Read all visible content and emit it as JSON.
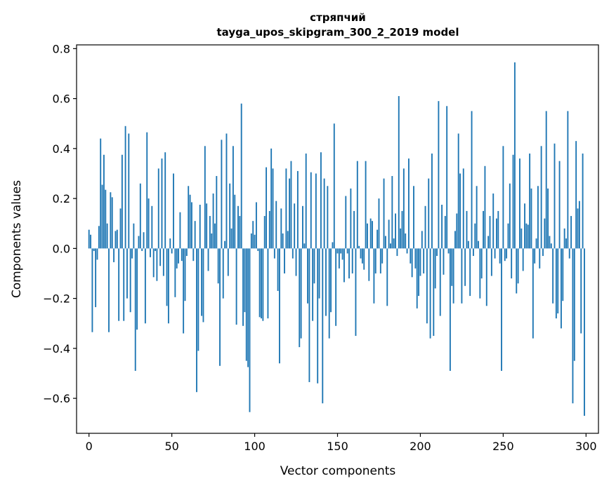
{
  "chart_data": {
    "type": "bar",
    "title": "стряпчий",
    "subtitle": "tayga_upos_skipgram_300_2_2019 model",
    "xlabel": "Vector components",
    "ylabel": "Components values",
    "xlim": [
      -7.5,
      307.5
    ],
    "ylim": [
      -0.74,
      0.815
    ],
    "xticks": [
      0,
      50,
      100,
      150,
      200,
      250,
      300
    ],
    "xtick_labels": [
      "0",
      "50",
      "100",
      "150",
      "200",
      "250",
      "300"
    ],
    "yticks": [
      -0.6,
      -0.4,
      -0.2,
      0.0,
      0.2,
      0.4,
      0.6,
      0.8
    ],
    "ytick_labels": [
      "−0.6",
      "−0.4",
      "−0.2",
      "0.0",
      "0.2",
      "0.4",
      "0.6",
      "0.8"
    ],
    "bar_color": "#1f77b4",
    "grid": false,
    "x": [
      0,
      1,
      2,
      3,
      4,
      5,
      6,
      7,
      8,
      9,
      10,
      11,
      12,
      13,
      14,
      15,
      16,
      17,
      18,
      19,
      20,
      21,
      22,
      23,
      24,
      25,
      26,
      27,
      28,
      29,
      30,
      31,
      32,
      33,
      34,
      35,
      36,
      37,
      38,
      39,
      40,
      41,
      42,
      43,
      44,
      45,
      46,
      47,
      48,
      49,
      50,
      51,
      52,
      53,
      54,
      55,
      56,
      57,
      58,
      59,
      60,
      61,
      62,
      63,
      64,
      65,
      66,
      67,
      68,
      69,
      70,
      71,
      72,
      73,
      74,
      75,
      76,
      77,
      78,
      79,
      80,
      81,
      82,
      83,
      84,
      85,
      86,
      87,
      88,
      89,
      90,
      91,
      92,
      93,
      94,
      95,
      96,
      97,
      98,
      99,
      100,
      101,
      102,
      103,
      104,
      105,
      106,
      107,
      108,
      109,
      110,
      111,
      112,
      113,
      114,
      115,
      116,
      117,
      118,
      119,
      120,
      121,
      122,
      123,
      124,
      125,
      126,
      127,
      128,
      129,
      130,
      131,
      132,
      133,
      134,
      135,
      136,
      137,
      138,
      139,
      140,
      141,
      142,
      143,
      144,
      145,
      146,
      147,
      148,
      149,
      150,
      151,
      152,
      153,
      154,
      155,
      156,
      157,
      158,
      159,
      160,
      161,
      162,
      163,
      164,
      165,
      166,
      167,
      168,
      169,
      170,
      171,
      172,
      173,
      174,
      175,
      176,
      177,
      178,
      179,
      180,
      181,
      182,
      183,
      184,
      185,
      186,
      187,
      188,
      189,
      190,
      191,
      192,
      193,
      194,
      195,
      196,
      197,
      198,
      199,
      200,
      201,
      202,
      203,
      204,
      205,
      206,
      207,
      208,
      209,
      210,
      211,
      212,
      213,
      214,
      215,
      216,
      217,
      218,
      219,
      220,
      221,
      222,
      223,
      224,
      225,
      226,
      227,
      228,
      229,
      230,
      231,
      232,
      233,
      234,
      235,
      236,
      237,
      238,
      239,
      240,
      241,
      242,
      243,
      244,
      245,
      246,
      247,
      248,
      249,
      250,
      251,
      252,
      253,
      254,
      255,
      256,
      257,
      258,
      259,
      260,
      261,
      262,
      263,
      264,
      265,
      266,
      267,
      268,
      269,
      270,
      271,
      272,
      273,
      274,
      275,
      276,
      277,
      278,
      279,
      280,
      281,
      282,
      283,
      284,
      285,
      286,
      287,
      288,
      289,
      290,
      291,
      292,
      293,
      294,
      295,
      296,
      297,
      298,
      299
    ],
    "values": [
      0.075,
      0.055,
      -0.335,
      -0.01,
      -0.235,
      -0.045,
      0.09,
      0.44,
      0.255,
      0.375,
      0.235,
      0.1,
      -0.335,
      0.225,
      0.205,
      -0.055,
      0.07,
      0.075,
      -0.29,
      0.16,
      0.375,
      -0.29,
      0.49,
      -0.2,
      0.46,
      -0.255,
      -0.04,
      0.1,
      -0.49,
      -0.325,
      0.05,
      0.26,
      -0.01,
      0.065,
      -0.3,
      0.465,
      0.2,
      -0.035,
      0.17,
      -0.115,
      -0.01,
      -0.13,
      0.32,
      -0.07,
      0.36,
      -0.11,
      0.385,
      -0.23,
      -0.3,
      0.04,
      -0.02,
      0.3,
      -0.195,
      -0.08,
      -0.06,
      0.145,
      -0.05,
      -0.34,
      -0.21,
      -0.03,
      0.25,
      0.215,
      0.185,
      -0.05,
      0.11,
      -0.575,
      -0.41,
      0.175,
      -0.27,
      -0.295,
      0.41,
      0.18,
      -0.09,
      0.13,
      0.06,
      0.22,
      0.1,
      0.29,
      -0.14,
      -0.47,
      0.435,
      -0.2,
      0.03,
      0.46,
      -0.11,
      0.26,
      0.08,
      0.41,
      0.215,
      -0.305,
      0.17,
      0.13,
      0.58,
      -0.31,
      -0.255,
      -0.45,
      -0.475,
      -0.655,
      0.06,
      0.11,
      0.055,
      0.185,
      -0.01,
      -0.275,
      -0.28,
      -0.29,
      0.13,
      0.325,
      -0.28,
      0.15,
      0.4,
      0.32,
      -0.04,
      0.19,
      -0.17,
      -0.46,
      0.16,
      0.06,
      -0.1,
      0.32,
      0.07,
      0.28,
      0.35,
      -0.04,
      0.18,
      -0.11,
      0.31,
      -0.395,
      -0.36,
      0.17,
      0.02,
      0.38,
      -0.22,
      -0.535,
      0.305,
      -0.29,
      -0.14,
      0.3,
      -0.54,
      -0.2,
      0.385,
      -0.62,
      0.28,
      -0.27,
      0.25,
      -0.36,
      -0.255,
      0.025,
      0.5,
      -0.31,
      -0.02,
      -0.08,
      -0.02,
      -0.045,
      -0.135,
      0.21,
      -0.02,
      -0.12,
      0.24,
      -0.1,
      0.15,
      -0.35,
      0.35,
      0.01,
      -0.04,
      -0.06,
      -0.085,
      0.35,
      0.1,
      -0.13,
      0.12,
      0.11,
      -0.22,
      -0.1,
      0.075,
      0.2,
      -0.1,
      -0.06,
      0.28,
      0.05,
      -0.23,
      0.115,
      0.02,
      0.29,
      0.04,
      0.14,
      -0.03,
      0.61,
      0.08,
      0.15,
      0.32,
      0.06,
      -0.02,
      0.36,
      -0.06,
      -0.115,
      0.25,
      -0.08,
      -0.24,
      -0.19,
      -0.11,
      0.07,
      -0.1,
      0.17,
      -0.3,
      0.28,
      -0.36,
      0.38,
      -0.35,
      -0.16,
      -0.03,
      0.59,
      -0.27,
      0.175,
      -0.105,
      0.13,
      0.57,
      -0.02,
      -0.49,
      -0.15,
      -0.22,
      0.07,
      0.14,
      0.46,
      0.3,
      -0.22,
      0.32,
      -0.15,
      0.15,
      0.03,
      -0.19,
      0.55,
      -0.03,
      0.1,
      0.25,
      0.03,
      -0.2,
      -0.12,
      0.15,
      0.33,
      -0.23,
      0.05,
      0.13,
      -0.11,
      0.22,
      -0.04,
      0.12,
      0.15,
      -0.06,
      -0.49,
      0.41,
      -0.05,
      -0.04,
      0.1,
      0.26,
      -0.12,
      0.375,
      0.745,
      -0.18,
      -0.14,
      0.36,
      0.08,
      -0.09,
      0.18,
      0.1,
      0.095,
      0.38,
      0.24,
      -0.36,
      -0.06,
      0.04,
      0.25,
      -0.08,
      0.41,
      -0.03,
      0.12,
      0.55,
      0.24,
      0.05,
      0.02,
      -0.22,
      0.42,
      -0.28,
      -0.26,
      0.35,
      -0.32,
      -0.21,
      0.08,
      0.04,
      0.55,
      -0.04,
      0.13,
      -0.62,
      -0.45,
      0.43,
      0.16,
      0.19,
      -0.34,
      0.38,
      -0.67
    ]
  }
}
